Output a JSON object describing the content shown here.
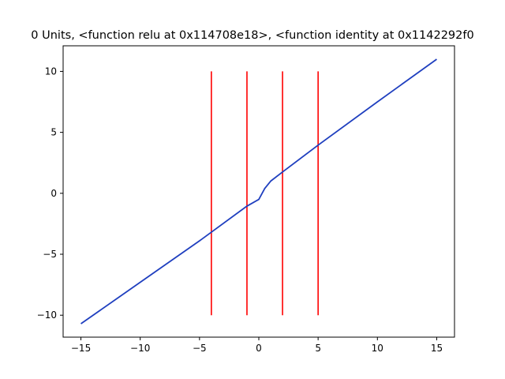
{
  "chart_data": {
    "type": "line",
    "title": "0 Units, <function relu at 0x114708e18>, <function identity at 0x1142292f0",
    "xlabel": "",
    "ylabel": "",
    "xlim": [
      -16.5,
      16.5
    ],
    "ylim": [
      -11.8,
      12.1
    ],
    "grid": false,
    "x_ticks": [
      -15,
      -10,
      -5,
      0,
      5,
      10,
      15
    ],
    "x_tick_labels": [
      "−15",
      "−10",
      "−5",
      "0",
      "5",
      "10",
      "15"
    ],
    "y_ticks": [
      -10,
      -5,
      0,
      5,
      10
    ],
    "y_tick_labels": [
      "−10",
      "−5",
      "0",
      "5",
      "10"
    ],
    "series": [
      {
        "color": "#1f3fbf",
        "x": [
          -15,
          -10,
          -5,
          -1,
          0,
          0.5,
          1,
          2,
          5,
          10,
          15
        ],
        "y": [
          -10.7,
          -7.3,
          -3.9,
          -1.05,
          -0.5,
          0.4,
          1.0,
          1.75,
          3.95,
          7.5,
          11.0
        ]
      }
    ],
    "vlines": {
      "color": "#ff0000",
      "x": [
        -4,
        -1,
        2,
        5
      ],
      "ymin": -10,
      "ymax": 10
    }
  }
}
